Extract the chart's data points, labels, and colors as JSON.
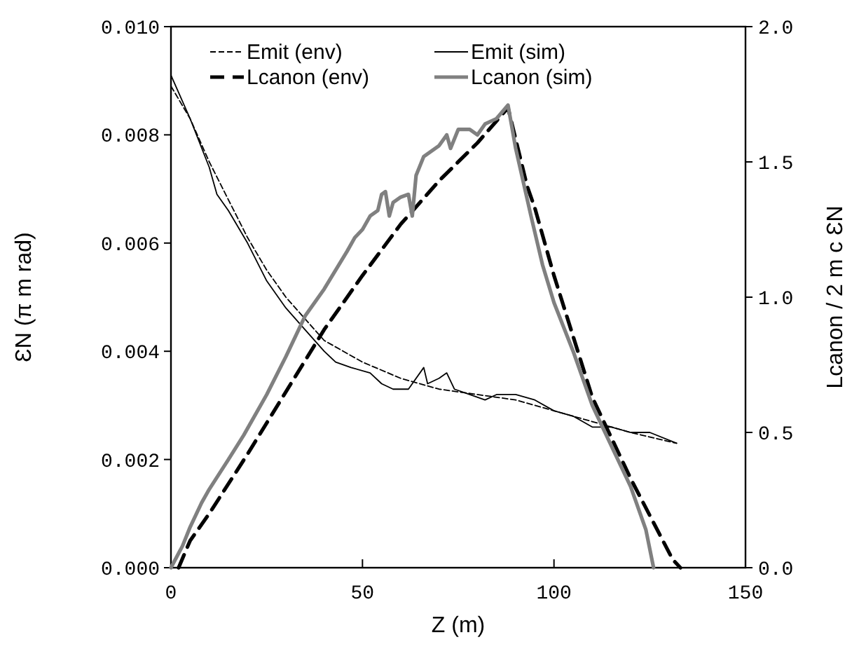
{
  "chart_data": {
    "type": "line",
    "xlabel": "Z (m)",
    "ylabel": "ƐN (π m rad)",
    "y2label": "Lcanon / 2 m c ƐN",
    "xlim": [
      0,
      150
    ],
    "xticks": [
      0,
      50,
      100,
      150
    ],
    "ylim": [
      0,
      0.01
    ],
    "yticks": [
      {
        "value": 0,
        "label": "0.000"
      },
      {
        "value": 0.002,
        "label": "0.002"
      },
      {
        "value": 0.004,
        "label": "0.004"
      },
      {
        "value": 0.006,
        "label": "0.006"
      },
      {
        "value": 0.008,
        "label": "0.008"
      },
      {
        "value": 0.01,
        "label": "0.010"
      }
    ],
    "y2lim": [
      0,
      2
    ],
    "y2ticks": [
      {
        "value": 0,
        "label": "0.0"
      },
      {
        "value": 0.5,
        "label": "0.5"
      },
      {
        "value": 1,
        "label": "1.0"
      },
      {
        "value": 1.5,
        "label": "1.5"
      },
      {
        "value": 2,
        "label": "2.0"
      }
    ],
    "grid": false,
    "legend": "top",
    "series": [
      {
        "name": "Emit (env)",
        "color": "#000000",
        "line_style": "dashed",
        "x": [
          0,
          5,
          10,
          15,
          20,
          25,
          30,
          35,
          40,
          45,
          50,
          60,
          70,
          80,
          90,
          100,
          110,
          120,
          132
        ],
        "values": [
          0.0089,
          0.0083,
          0.0075,
          0.0068,
          0.0061,
          0.0055,
          0.005,
          0.0046,
          0.0042,
          0.004,
          0.0038,
          0.0035,
          0.0033,
          0.0032,
          0.0031,
          0.0029,
          0.0027,
          0.0025,
          0.0023
        ]
      },
      {
        "name": "Emit (sim)",
        "color": "#000000",
        "line_style": "solid",
        "x": [
          0,
          5,
          10,
          12,
          15,
          20,
          25,
          30,
          35,
          40,
          43,
          47,
          52,
          55,
          58,
          62,
          66,
          67,
          70,
          72,
          74,
          78,
          82,
          85,
          90,
          95,
          100,
          105,
          110,
          115,
          120,
          125,
          132
        ],
        "values": [
          0.0091,
          0.0083,
          0.0074,
          0.0069,
          0.0066,
          0.006,
          0.0053,
          0.0048,
          0.0044,
          0.004,
          0.0038,
          0.0037,
          0.0036,
          0.0034,
          0.0033,
          0.0033,
          0.0037,
          0.0034,
          0.0035,
          0.0036,
          0.0033,
          0.0032,
          0.0031,
          0.0032,
          0.0032,
          0.0031,
          0.0029,
          0.0028,
          0.0026,
          0.0026,
          0.0025,
          0.0025,
          0.0023
        ]
      },
      {
        "name": "Lcanon (env)",
        "color": "#000000",
        "line_style": "dashed",
        "axis": "y2",
        "x": [
          2,
          5,
          10,
          20,
          30,
          40,
          50,
          60,
          70,
          80,
          88,
          93,
          95,
          100,
          110,
          120,
          131,
          133
        ],
        "values": [
          0,
          0.1,
          0.2,
          0.42,
          0.65,
          0.88,
          1.08,
          1.27,
          1.43,
          1.57,
          1.7,
          1.41,
          1.33,
          1.08,
          0.63,
          0.33,
          0.03,
          0
        ]
      },
      {
        "name": "Lcanon (sim)",
        "color": "#808080",
        "line_style": "solid",
        "axis": "y2",
        "x": [
          0,
          3,
          5,
          8,
          10,
          15,
          19,
          25,
          30,
          35,
          40,
          46,
          48,
          50,
          52,
          54,
          55,
          56,
          57,
          58,
          60,
          62,
          63,
          64,
          66,
          70,
          72,
          73,
          75,
          78,
          80,
          82,
          85,
          88,
          90,
          94,
          97,
          100,
          105,
          110,
          115,
          120,
          124,
          126
        ],
        "values": [
          0,
          0.08,
          0.15,
          0.24,
          0.29,
          0.4,
          0.49,
          0.64,
          0.78,
          0.93,
          1.03,
          1.17,
          1.22,
          1.25,
          1.3,
          1.32,
          1.38,
          1.39,
          1.3,
          1.35,
          1.37,
          1.38,
          1.3,
          1.45,
          1.52,
          1.56,
          1.6,
          1.55,
          1.62,
          1.62,
          1.6,
          1.64,
          1.66,
          1.71,
          1.55,
          1.3,
          1.12,
          0.98,
          0.8,
          0.6,
          0.45,
          0.3,
          0.14,
          0
        ]
      }
    ]
  }
}
